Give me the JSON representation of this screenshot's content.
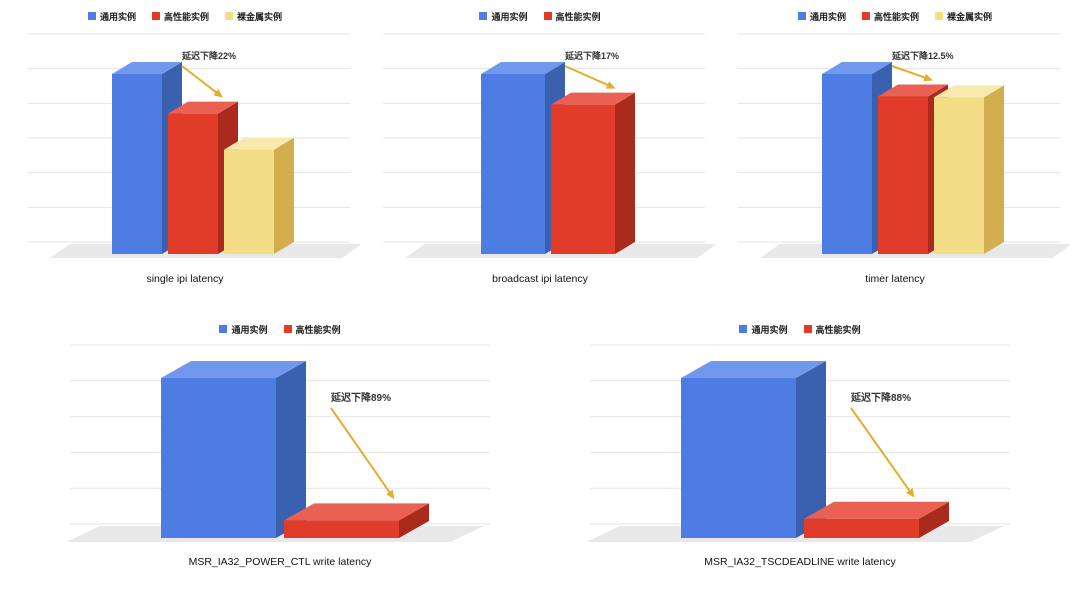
{
  "colors": {
    "blue": {
      "front": "#4d7ce2",
      "top": "#7198ec",
      "side": "#3a61b0"
    },
    "red": {
      "front": "#e13b2a",
      "top": "#ea6153",
      "side": "#aa2b1e"
    },
    "yellow": {
      "front": "#f4dd87",
      "top": "#f8e9ae",
      "side": "#d3ae4e"
    },
    "arrow": "#e3ae2f",
    "floor": "#e8e8e8",
    "gridline": "#e4e4e4",
    "annotation_text": "#333333"
  },
  "chart_data": [
    {
      "type": "bar",
      "style": "3d",
      "title": "single ipi latency",
      "legend": [
        "通用实例",
        "高性能实例",
        "裸金属实例"
      ],
      "series_colors": [
        "blue",
        "red",
        "yellow"
      ],
      "categories": [
        "通用实例",
        "高性能实例",
        "裸金属实例"
      ],
      "values": [
        100,
        78,
        58
      ],
      "annotation": "延迟下降22%",
      "legend_position": "top",
      "grid": true
    },
    {
      "type": "bar",
      "style": "3d",
      "title": "broadcast ipi latency",
      "legend": [
        "通用实例",
        "高性能实例"
      ],
      "series_colors": [
        "blue",
        "red"
      ],
      "categories": [
        "通用实例",
        "高性能实例"
      ],
      "values": [
        100,
        83
      ],
      "annotation": "延迟下降17%",
      "legend_position": "top",
      "grid": true
    },
    {
      "type": "bar",
      "style": "3d",
      "title": "timer latency",
      "legend": [
        "通用实例",
        "高性能实例",
        "裸金属实例"
      ],
      "series_colors": [
        "blue",
        "red",
        "yellow"
      ],
      "categories": [
        "通用实例",
        "高性能实例",
        "裸金属实例"
      ],
      "values": [
        100,
        87.5,
        87
      ],
      "annotation": "延迟下降12.5%",
      "legend_position": "top",
      "grid": true
    },
    {
      "type": "bar",
      "style": "3d",
      "title": "MSR_IA32_POWER_CTL write latency",
      "legend": [
        "通用实例",
        "高性能实例"
      ],
      "series_colors": [
        "blue",
        "red"
      ],
      "categories": [
        "通用实例",
        "高性能实例"
      ],
      "values": [
        100,
        11
      ],
      "annotation": "延迟下降89%",
      "legend_position": "top",
      "grid": true
    },
    {
      "type": "bar",
      "style": "3d",
      "title": "MSR_IA32_TSCDEADLINE write latency",
      "legend": [
        "通用实例",
        "高性能实例"
      ],
      "series_colors": [
        "blue",
        "red"
      ],
      "categories": [
        "通用实例",
        "高性能实例"
      ],
      "values": [
        100,
        12
      ],
      "annotation": "延迟下降88%",
      "legend_position": "top",
      "grid": true
    }
  ]
}
